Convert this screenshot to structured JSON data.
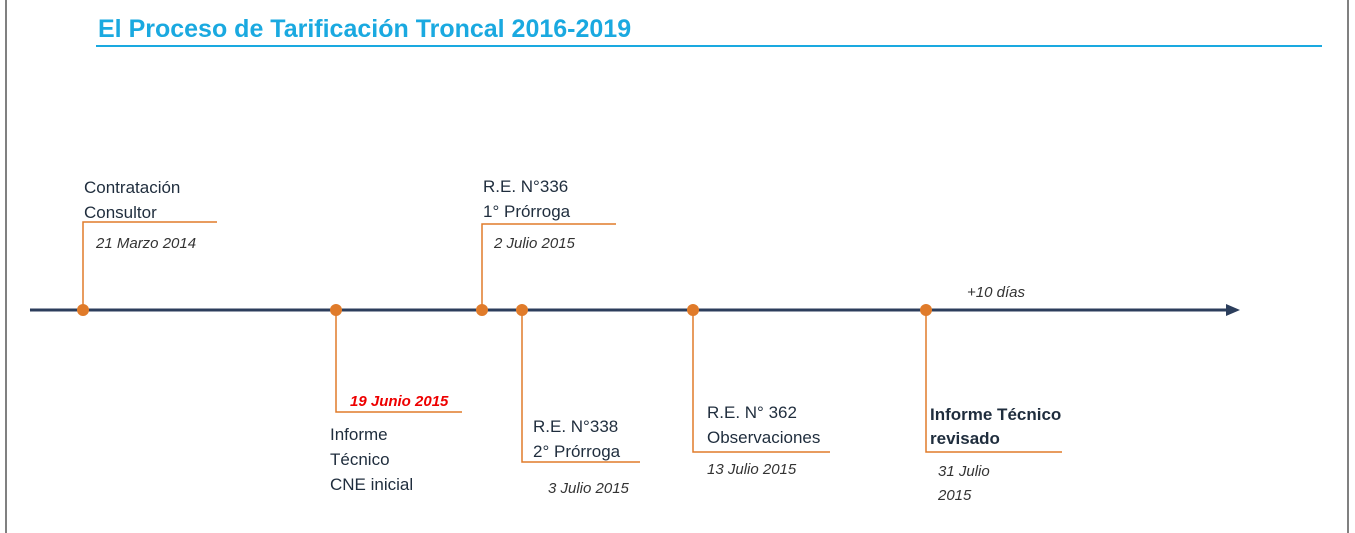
{
  "title": "El Proceso de Tarificación Troncal 2016-2019",
  "note": "+10 días",
  "events": [
    {
      "label": [
        "Contratación",
        "Consultor"
      ],
      "date": [
        "21 Marzo 2014"
      ]
    },
    {
      "label": [
        "Informe",
        "Técnico",
        "CNE inicial"
      ],
      "date": [
        "19 Junio 2015"
      ]
    },
    {
      "label": [
        "R.E. N°336",
        "1° Prórroga"
      ],
      "date": [
        "2 Julio 2015"
      ]
    },
    {
      "label": [
        "R.E. N°338",
        "2° Prórroga"
      ],
      "date": [
        "3 Julio 2015"
      ]
    },
    {
      "label": [
        "R.E. N° 362",
        "Observaciones"
      ],
      "date": [
        "13 Julio 2015"
      ]
    },
    {
      "label": [
        "Informe Técnico",
        "revisado"
      ],
      "date": [
        "31 Julio",
        "2015"
      ]
    }
  ]
}
